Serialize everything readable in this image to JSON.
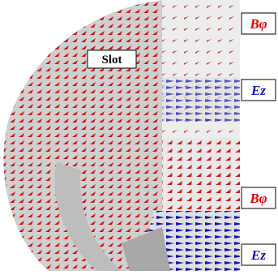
{
  "slot_label": "Slot",
  "field_labels": [
    {
      "text": "Bφ",
      "color": "#e00000"
    },
    {
      "text": "Ez",
      "color": "#1010c0"
    },
    {
      "text": "Bφ",
      "color": "#e00000"
    },
    {
      "text": "Ez",
      "color": "#1010c0"
    }
  ]
}
